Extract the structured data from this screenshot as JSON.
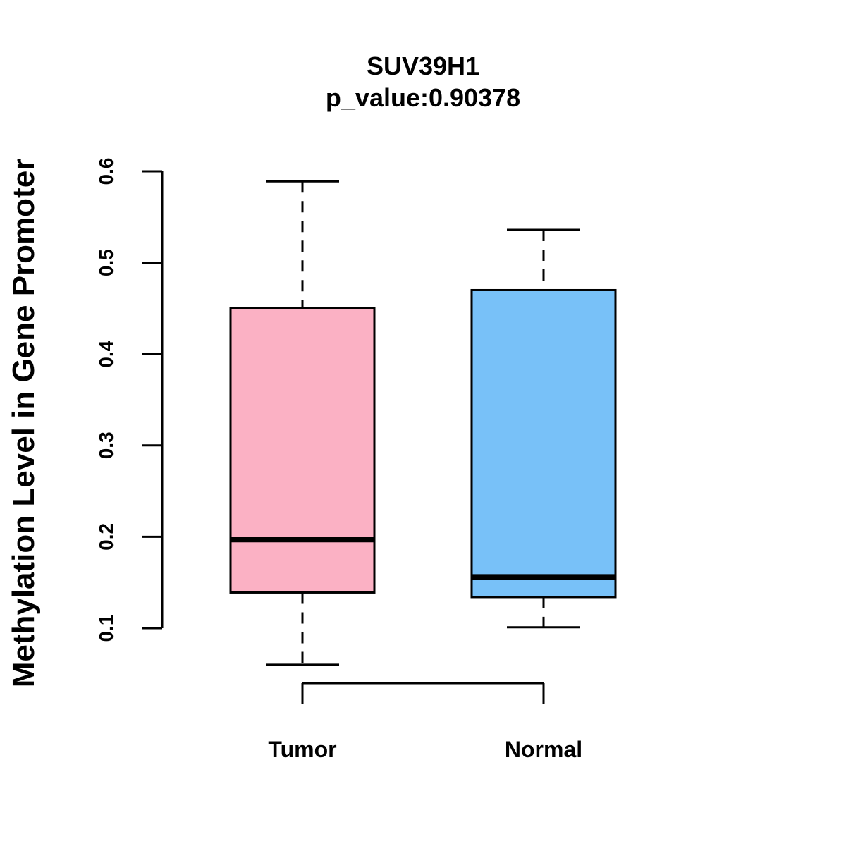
{
  "chart_data": {
    "type": "box",
    "title": "SUV39H1",
    "subtitle": "p_value:0.90378",
    "xlabel": "",
    "ylabel": "Methylation Level in Gene Promoter",
    "ylim": [
      0.1,
      0.6
    ],
    "yticks": [
      "0.1",
      "0.2",
      "0.3",
      "0.4",
      "0.5",
      "0.6"
    ],
    "grid": false,
    "categories": [
      "Tumor",
      "Normal"
    ],
    "series": [
      {
        "name": "Tumor",
        "color": "#FBB1C4",
        "whisker_low": 0.06,
        "q1": 0.139,
        "median": 0.197,
        "q3": 0.45,
        "whisker_high": 0.589
      },
      {
        "name": "Normal",
        "color": "#78C1F8",
        "whisker_low": 0.101,
        "q1": 0.134,
        "median": 0.156,
        "q3": 0.47,
        "whisker_high": 0.536
      }
    ]
  }
}
